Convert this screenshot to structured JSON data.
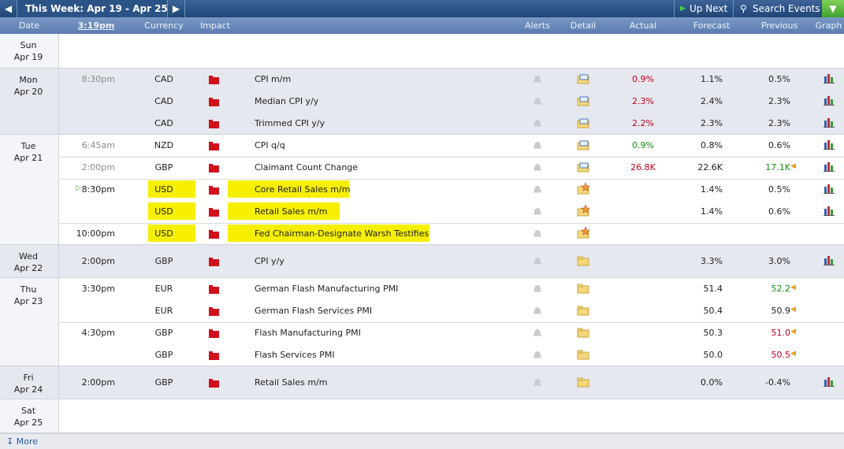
{
  "toolbar": {
    "week": "This Week: Apr 19 - Apr 25",
    "up_next": "Up Next",
    "search": "Search Events"
  },
  "columns": [
    "Date",
    "3:19pm",
    "Currency",
    "Impact",
    "Alerts",
    "Detail",
    "Actual",
    "Forecast",
    "Previous",
    "Graph"
  ],
  "days": [
    {
      "day": "Sun",
      "date": "Apr 19",
      "events": []
    },
    {
      "day": "Mon",
      "date": "Apr 20",
      "events": [
        {
          "time": "8:30pm",
          "past": true,
          "currency": "CAD",
          "title": "CPI m/m",
          "actual": "0.9%",
          "actual_color": "#c4001b",
          "forecast": "1.1%",
          "previous": "0.5%",
          "graph": true
        },
        {
          "time": null,
          "currency": "CAD",
          "title": "Median CPI y/y",
          "actual": "2.3%",
          "actual_color": "#c4001b",
          "forecast": "2.4%",
          "previous": "2.3%",
          "graph": true
        },
        {
          "time": null,
          "currency": "CAD",
          "title": "Trimmed CPI y/y",
          "actual": "2.2%",
          "actual_color": "#c4001b",
          "forecast": "2.3%",
          "previous": "2.3%",
          "graph": true
        }
      ]
    },
    {
      "day": "Tue",
      "date": "Apr 21",
      "events": [
        {
          "time": "6:45am",
          "past": true,
          "currency": "NZD",
          "title": "CPI q/q",
          "actual": "0.9%",
          "actual_color": "#129012",
          "forecast": "0.8%",
          "previous": "0.6%",
          "graph": true
        },
        {
          "time": "2:00pm",
          "past": true,
          "currency": "GBP",
          "title": "Claimant Count Change",
          "actual": "26.8K",
          "actual_color": "#c4001b",
          "forecast": "22.6K",
          "previous": "17.1K",
          "previous_color": "#129012",
          "previous_revised": true,
          "graph": true
        },
        {
          "time": "8:30pm",
          "next": true,
          "currency": "USD",
          "title": "Core Retail Sales m/m",
          "highlight": true,
          "starred": true,
          "forecast": "1.4%",
          "previous": "0.5%",
          "graph": true
        },
        {
          "time": null,
          "currency": "USD",
          "title": "Retail Sales m/m",
          "highlight": true,
          "starred": true,
          "forecast": "1.4%",
          "previous": "0.6%",
          "graph": true
        },
        {
          "time": "10:00pm",
          "currency": "USD",
          "title": "Fed Chairman-Designate Warsh Testifies",
          "highlight": true,
          "starred": true
        }
      ]
    },
    {
      "day": "Wed",
      "date": "Apr 22",
      "events": [
        {
          "time": "2:00pm",
          "currency": "GBP",
          "title": "CPI y/y",
          "forecast": "3.3%",
          "previous": "3.0%",
          "graph": true
        }
      ]
    },
    {
      "day": "Thu",
      "date": "Apr 23",
      "events": [
        {
          "time": "3:30pm",
          "currency": "EUR",
          "title": "German Flash Manufacturing PMI",
          "forecast": "51.4",
          "previous": "52.2",
          "previous_color": "#129012",
          "previous_revised": true
        },
        {
          "time": null,
          "currency": "EUR",
          "title": "German Flash Services PMI",
          "forecast": "50.4",
          "previous": "50.9",
          "previous_revised": true
        },
        {
          "time": "4:30pm",
          "currency": "GBP",
          "title": "Flash Manufacturing PMI",
          "forecast": "50.3",
          "previous": "51.0",
          "previous_color": "#c4001b",
          "previous_revised": true
        },
        {
          "time": null,
          "currency": "GBP",
          "title": "Flash Services PMI",
          "forecast": "50.0",
          "previous": "50.5",
          "previous_color": "#c4001b",
          "previous_revised": true
        }
      ]
    },
    {
      "day": "Fri",
      "date": "Apr 24",
      "events": [
        {
          "time": "2:00pm",
          "currency": "GBP",
          "title": "Retail Sales m/m",
          "forecast": "0.0%",
          "previous": "-0.4%",
          "graph": true
        }
      ]
    },
    {
      "day": "Sat",
      "date": "Apr 25",
      "events": []
    }
  ],
  "footer": {
    "more": "More"
  }
}
